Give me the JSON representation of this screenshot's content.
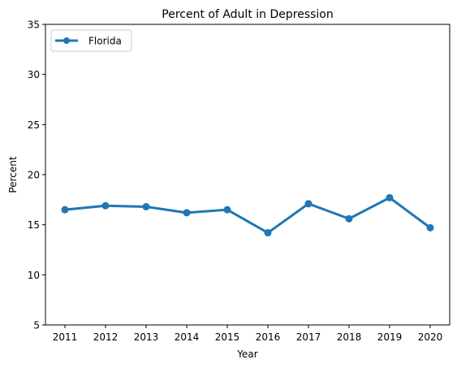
{
  "chart_data": {
    "type": "line",
    "title": "Percent of Adult in Depression",
    "xlabel": "Year",
    "ylabel": "Percent",
    "ylim": [
      5,
      35
    ],
    "yticks": [
      5,
      10,
      15,
      20,
      25,
      30,
      35
    ],
    "x": [
      "2011",
      "2012",
      "2013",
      "2014",
      "2015",
      "2016",
      "2017",
      "2018",
      "2019",
      "2020"
    ],
    "series": [
      {
        "name": "Florida",
        "color": "#1f77b4",
        "values": [
          16.5,
          16.9,
          16.8,
          16.2,
          16.5,
          14.2,
          17.1,
          15.6,
          17.7,
          14.7
        ]
      }
    ],
    "grid": false,
    "legend": "top-left"
  }
}
